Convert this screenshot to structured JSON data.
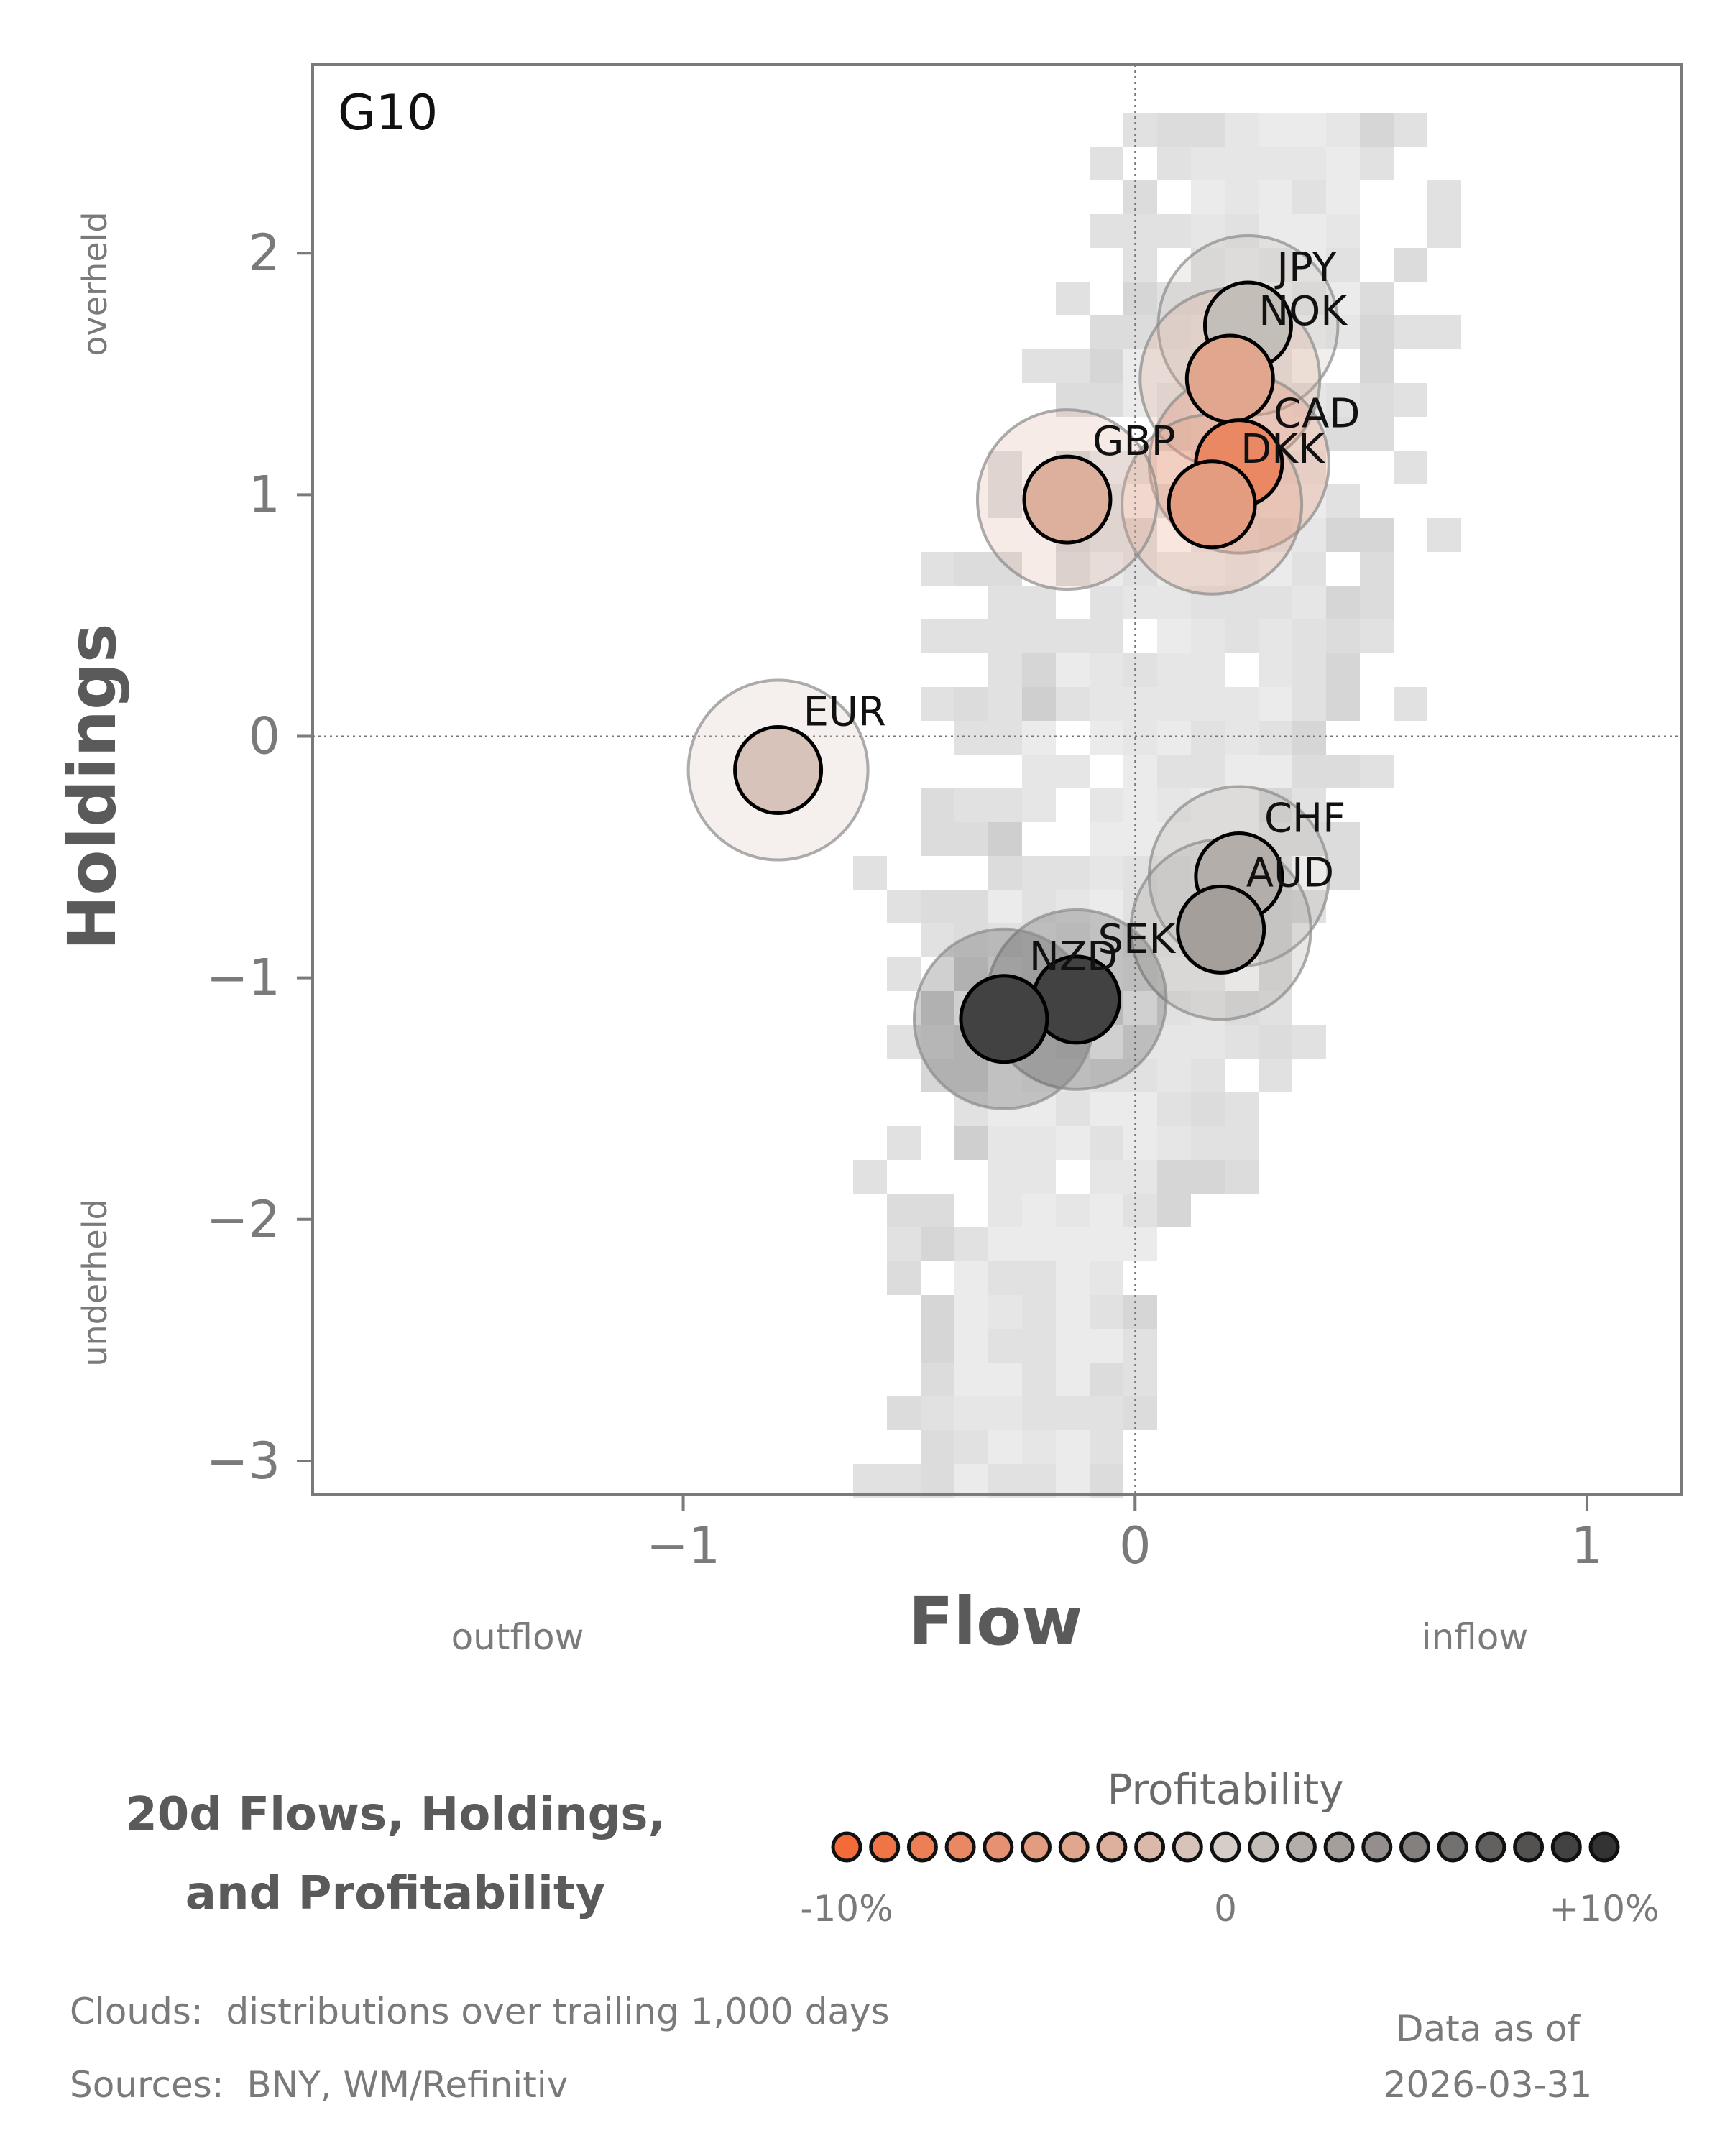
{
  "chart_data": {
    "type": "scatter",
    "panel_label": "G10",
    "xlabel": "Flow",
    "ylabel": "Holdings",
    "x_left_label": "outflow",
    "x_right_label": "inflow",
    "y_top_label": "overheld",
    "y_bottom_label": "underheld",
    "xlim": [
      -1.82,
      1.21
    ],
    "ylim": [
      -3.14,
      2.78
    ],
    "xticks": [
      -1,
      0,
      1
    ],
    "xtick_labels": [
      "−1",
      "0",
      "1"
    ],
    "yticks": [
      -3,
      -2,
      -1,
      0,
      1,
      2
    ],
    "ytick_labels": [
      "−3",
      "−2",
      "−1",
      "0",
      "1",
      "2"
    ],
    "reference_lines": {
      "x": 0,
      "y": 0
    },
    "grid": false,
    "points": [
      {
        "label": "JPY",
        "x": 0.25,
        "y": 1.7,
        "profitability": 1
      },
      {
        "label": "NOK",
        "x": 0.21,
        "y": 1.48,
        "profitability": -4
      },
      {
        "label": "CAD",
        "x": 0.23,
        "y": 1.13,
        "profitability": -7
      },
      {
        "label": "DKK",
        "x": 0.17,
        "y": 0.96,
        "profitability": -5
      },
      {
        "label": "GBP",
        "x": -0.15,
        "y": 0.98,
        "profitability": -3
      },
      {
        "label": "EUR",
        "x": -0.79,
        "y": -0.14,
        "profitability": -1
      },
      {
        "label": "CHF",
        "x": 0.23,
        "y": -0.58,
        "profitability": 2
      },
      {
        "label": "AUD",
        "x": 0.19,
        "y": -0.8,
        "profitability": 3
      },
      {
        "label": "SEK",
        "x": -0.13,
        "y": -1.09,
        "profitability": 9
      },
      {
        "label": "NZD",
        "x": -0.29,
        "y": -1.17,
        "profitability": 9
      }
    ]
  },
  "title_line1": "20d Flows, Holdings,",
  "title_line2": "and Profitability",
  "colorbar": {
    "title": "Profitability",
    "min_label": "-10%",
    "mid_label": "0",
    "max_label": "+10%",
    "low_color": "#f26b38",
    "mid_color": "#d4cdc8",
    "high_color": "#333333"
  },
  "footer": {
    "clouds_note": "Clouds:  distributions over trailing 1,000 days",
    "sources_note": "Sources:  BNY, WM/Refinitiv",
    "data_as_of_label": "Data as of",
    "data_as_of_date": "2026-03-31"
  }
}
